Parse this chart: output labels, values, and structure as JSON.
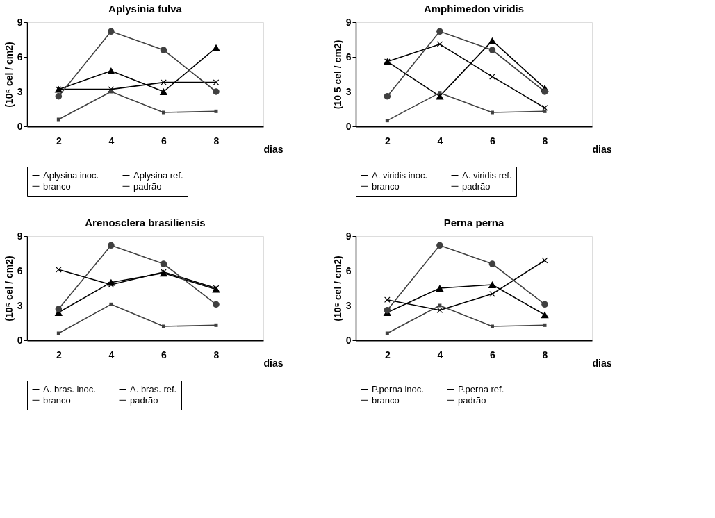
{
  "chart_data": [
    {
      "type": "line",
      "title": "Aplysinia fulva",
      "xlabel": "dias",
      "ylabel": "(10⁵ cel / cm2)",
      "categories": [
        "2",
        "4",
        "6",
        "8"
      ],
      "ylim": [
        0,
        9
      ],
      "yticks": [
        0,
        3,
        6,
        9
      ],
      "grid": false,
      "legend": "bottom",
      "series": [
        {
          "name": "Aplysina inoc.",
          "color": "#000000",
          "marker": "triangle",
          "values": [
            3.2,
            4.8,
            3.0,
            6.8
          ]
        },
        {
          "name": "Aplysina ref.",
          "color": "#000000",
          "marker": "cross",
          "values": [
            3.2,
            3.2,
            3.8,
            3.8
          ]
        },
        {
          "name": "branco",
          "color": "#404040",
          "marker": "circle",
          "values": [
            2.6,
            8.2,
            6.6,
            3.0
          ]
        },
        {
          "name": "padrão",
          "color": "#404040",
          "marker": "square",
          "values": [
            0.6,
            3.0,
            1.2,
            1.3
          ]
        }
      ]
    },
    {
      "type": "line",
      "title": "Amphimedon viridis",
      "xlabel": "dias",
      "ylabel": "(10 5 cel / cm2)",
      "categories": [
        "2",
        "4",
        "6",
        "8"
      ],
      "ylim": [
        0,
        9
      ],
      "yticks": [
        0,
        3,
        6,
        9
      ],
      "grid": false,
      "legend": "bottom",
      "series": [
        {
          "name": "A. viridis inoc.",
          "color": "#000000",
          "marker": "triangle",
          "values": [
            5.6,
            2.6,
            7.4,
            3.3
          ]
        },
        {
          "name": "A. viridis ref.",
          "color": "#000000",
          "marker": "cross",
          "values": [
            5.6,
            7.1,
            4.3,
            1.6
          ]
        },
        {
          "name": "branco",
          "color": "#404040",
          "marker": "circle",
          "values": [
            2.6,
            8.2,
            6.6,
            3.0
          ]
        },
        {
          "name": "padrão",
          "color": "#404040",
          "marker": "square",
          "values": [
            0.5,
            2.9,
            1.2,
            1.3
          ]
        }
      ]
    },
    {
      "type": "line",
      "title": "Arenosclera brasiliensis",
      "xlabel": "dias",
      "ylabel": "(10⁵ cel / cm2)",
      "categories": [
        "2",
        "4",
        "6",
        "8"
      ],
      "ylim": [
        0,
        9
      ],
      "yticks": [
        0,
        3,
        6,
        9
      ],
      "grid": false,
      "legend": "bottom",
      "series": [
        {
          "name": "A. bras. inoc.",
          "color": "#000000",
          "marker": "triangle",
          "values": [
            2.4,
            5.0,
            5.8,
            4.4
          ]
        },
        {
          "name": "A. bras. ref.",
          "color": "#000000",
          "marker": "cross",
          "values": [
            6.1,
            4.8,
            5.9,
            4.5
          ]
        },
        {
          "name": "branco",
          "color": "#404040",
          "marker": "circle",
          "values": [
            2.7,
            8.2,
            6.6,
            3.1
          ]
        },
        {
          "name": "padrão",
          "color": "#404040",
          "marker": "square",
          "values": [
            0.6,
            3.1,
            1.2,
            1.3
          ]
        }
      ]
    },
    {
      "type": "line",
      "title": "Perna perna",
      "xlabel": "dias",
      "ylabel": "(10⁵ cel / cm2)",
      "categories": [
        "2",
        "4",
        "6",
        "8"
      ],
      "ylim": [
        0,
        9
      ],
      "yticks": [
        0,
        3,
        6,
        9
      ],
      "grid": false,
      "legend": "bottom",
      "series": [
        {
          "name": "P.perna inoc.",
          "color": "#000000",
          "marker": "triangle",
          "values": [
            2.4,
            4.5,
            4.8,
            2.2
          ]
        },
        {
          "name": "P.perna ref.",
          "color": "#000000",
          "marker": "cross",
          "values": [
            3.5,
            2.6,
            4.0,
            6.9
          ]
        },
        {
          "name": "branco",
          "color": "#404040",
          "marker": "circle",
          "values": [
            2.6,
            8.2,
            6.6,
            3.1
          ]
        },
        {
          "name": "padrão",
          "color": "#404040",
          "marker": "square",
          "values": [
            0.6,
            3.0,
            1.2,
            1.3
          ]
        }
      ]
    }
  ]
}
